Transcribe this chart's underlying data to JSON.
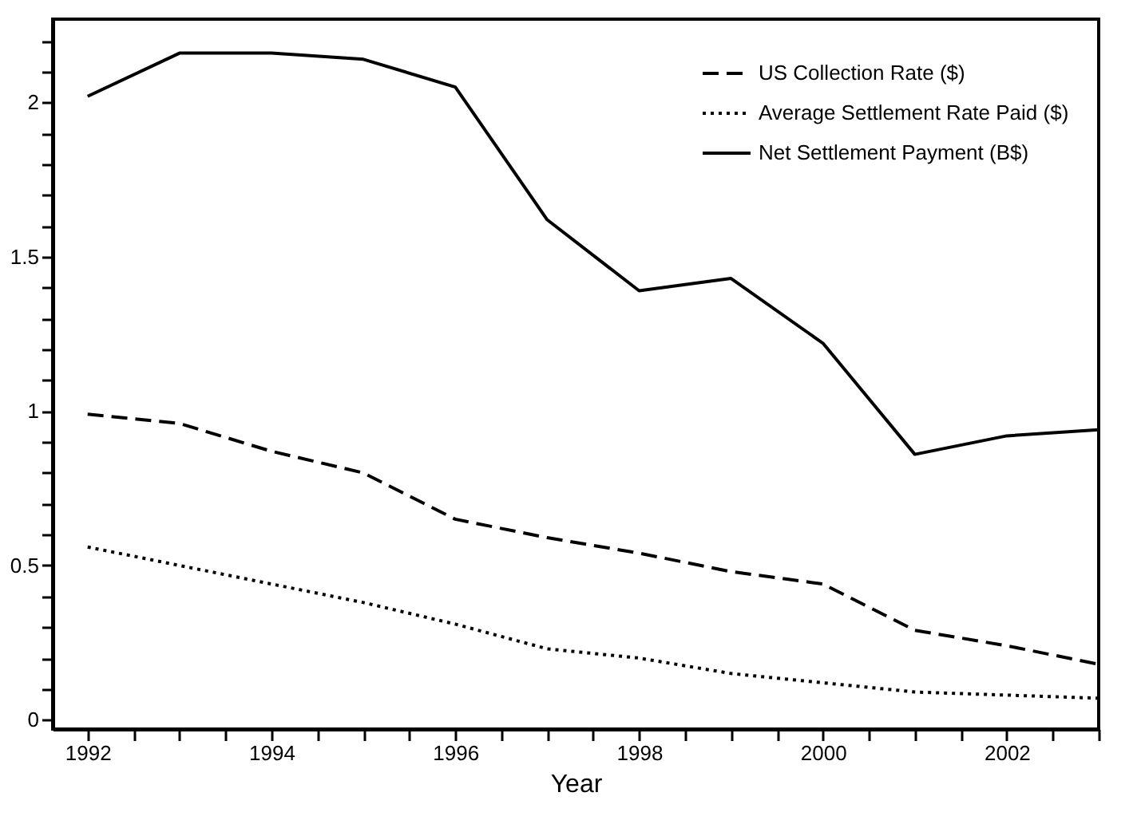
{
  "chart_data": {
    "type": "line",
    "xlabel": "Year",
    "x": [
      1992,
      1993,
      1994,
      1995,
      1996,
      1997,
      1998,
      1999,
      2000,
      2001,
      2002,
      2003
    ],
    "series": [
      {
        "name": "US Collection Rate ($)",
        "color": "#000000",
        "line_style": "dashed",
        "values": [
          0.99,
          0.96,
          0.87,
          0.8,
          0.65,
          0.59,
          0.54,
          0.48,
          0.44,
          0.29,
          0.24,
          0.18
        ]
      },
      {
        "name": "Average Settlement Rate Paid ($)",
        "color": "#000000",
        "line_style": "dotted",
        "values": [
          0.56,
          0.5,
          0.44,
          0.38,
          0.31,
          0.23,
          0.2,
          0.15,
          0.12,
          0.09,
          0.08,
          0.07
        ]
      },
      {
        "name": "Net Settlement Payment (B$)",
        "color": "#000000",
        "line_style": "solid",
        "values": [
          2.02,
          2.16,
          2.16,
          2.14,
          2.05,
          1.62,
          1.39,
          1.43,
          1.22,
          0.86,
          0.92,
          0.94
        ]
      }
    ],
    "xlim": [
      1991.62,
      2003
    ],
    "ylim": [
      -0.03,
      2.27
    ],
    "xticks": [
      1992,
      {
        "value": 1992.5,
        "label": null
      },
      {
        "value": 1993,
        "label": null
      },
      {
        "value": 1993.5,
        "label": null
      },
      1994,
      {
        "value": 1994.5,
        "label": null
      },
      {
        "value": 1995,
        "label": null
      },
      {
        "value": 1995.5,
        "label": null
      },
      1996,
      {
        "value": 1996.5,
        "label": null
      },
      {
        "value": 1997,
        "label": null
      },
      {
        "value": 1997.5,
        "label": null
      },
      1998,
      {
        "value": 1998.5,
        "label": null
      },
      {
        "value": 1999,
        "label": null
      },
      {
        "value": 1999.5,
        "label": null
      },
      2000,
      {
        "value": 2000.5,
        "label": null
      },
      {
        "value": 2001,
        "label": null
      },
      {
        "value": 2001.5,
        "label": null
      },
      2002,
      {
        "value": 2002.5,
        "label": null
      },
      {
        "value": 2003,
        "label": null
      }
    ],
    "yticks": [
      0,
      {
        "value": 0.1,
        "label": null
      },
      {
        "value": 0.2,
        "label": null
      },
      {
        "value": 0.3,
        "label": null
      },
      {
        "value": 0.4,
        "label": null
      },
      0.5,
      {
        "value": 0.6,
        "label": null
      },
      {
        "value": 0.7,
        "label": null
      },
      {
        "value": 0.8,
        "label": null
      },
      {
        "value": 0.9,
        "label": null
      },
      1,
      {
        "value": 1.1,
        "label": null
      },
      {
        "value": 1.2,
        "label": null
      },
      {
        "value": 1.3,
        "label": null
      },
      {
        "value": 1.4,
        "label": null
      },
      1.5,
      {
        "value": 1.6,
        "label": null
      },
      {
        "value": 1.7,
        "label": null
      },
      {
        "value": 1.8,
        "label": null
      },
      {
        "value": 1.9,
        "label": null
      },
      2,
      {
        "value": 2.1,
        "label": null
      },
      {
        "value": 2.2,
        "label": null
      }
    ],
    "grid": false,
    "legend": "top right",
    "marker": "none"
  }
}
